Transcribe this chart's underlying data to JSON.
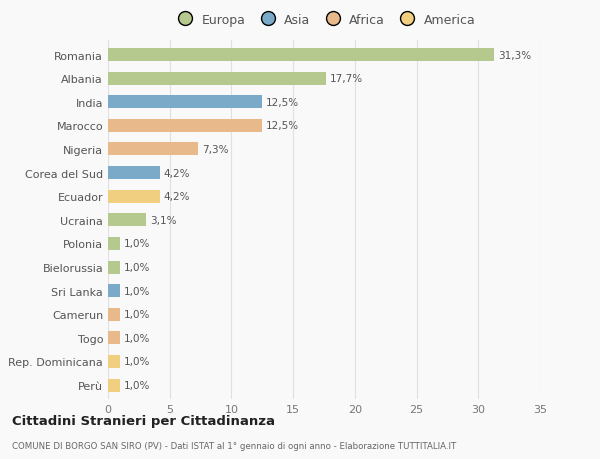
{
  "categories": [
    "Romania",
    "Albania",
    "India",
    "Marocco",
    "Nigeria",
    "Corea del Sud",
    "Ecuador",
    "Ucraina",
    "Polonia",
    "Bielorussia",
    "Sri Lanka",
    "Camerun",
    "Togo",
    "Rep. Dominicana",
    "Perù"
  ],
  "values": [
    31.3,
    17.7,
    12.5,
    12.5,
    7.3,
    4.2,
    4.2,
    3.1,
    1.0,
    1.0,
    1.0,
    1.0,
    1.0,
    1.0,
    1.0
  ],
  "labels": [
    "31,3%",
    "17,7%",
    "12,5%",
    "12,5%",
    "7,3%",
    "4,2%",
    "4,2%",
    "3,1%",
    "1,0%",
    "1,0%",
    "1,0%",
    "1,0%",
    "1,0%",
    "1,0%",
    "1,0%"
  ],
  "colors": [
    "#b5c98e",
    "#b5c98e",
    "#7aaac8",
    "#e8b98a",
    "#e8b98a",
    "#7aaac8",
    "#f0d080",
    "#b5c98e",
    "#b5c98e",
    "#b5c98e",
    "#7aaac8",
    "#e8b98a",
    "#e8b98a",
    "#f0d080",
    "#f0d080"
  ],
  "legend_labels": [
    "Europa",
    "Asia",
    "Africa",
    "America"
  ],
  "legend_colors": [
    "#b5c98e",
    "#7aaac8",
    "#e8b98a",
    "#f0d080"
  ],
  "title": "Cittadini Stranieri per Cittadinanza",
  "subtitle": "COMUNE DI BORGO SAN SIRO (PV) - Dati ISTAT al 1° gennaio di ogni anno - Elaborazione TUTTITALIA.IT",
  "xlim": [
    0,
    35
  ],
  "xticks": [
    0,
    5,
    10,
    15,
    20,
    25,
    30,
    35
  ],
  "bg_color": "#f9f9f9",
  "grid_color": "#e0e0e0"
}
